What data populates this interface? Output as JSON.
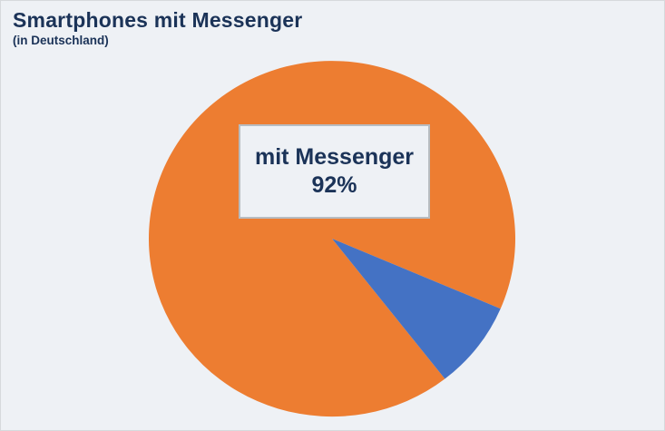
{
  "chart_data": {
    "type": "pie",
    "title": "Smartphones mit Messenger",
    "subtitle": "(in Deutschland)",
    "slices": [
      {
        "label": "mit Messenger",
        "value": 92,
        "color": "#ED7D31"
      },
      {
        "label": "",
        "value": 8,
        "color": "#4472C4"
      }
    ],
    "center_label": {
      "line1": "mit Messenger",
      "line2": "92%"
    },
    "rotation_deg": 142,
    "legend": "none",
    "grid": false,
    "colors": {
      "background": "#EEF1F5",
      "page_border": "#D6D9DC",
      "label_box_border": "#B7BCC1",
      "text": "#1B3358"
    }
  }
}
